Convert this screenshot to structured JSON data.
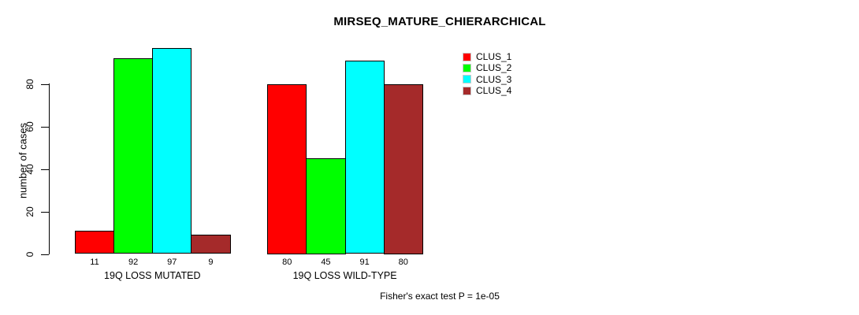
{
  "chart_data": {
    "type": "bar",
    "title": "MIRSEQ_MATURE_CHIERARCHICAL",
    "ylabel": "number of cases",
    "xlabel": "",
    "ylim": [
      0,
      97
    ],
    "yticks": [
      0,
      20,
      40,
      60,
      80
    ],
    "grid": false,
    "legend_position": "right-of-plot-top",
    "categories": [
      "19Q LOSS MUTATED",
      "19Q LOSS WILD-TYPE"
    ],
    "series": [
      {
        "name": "CLUS_1",
        "color": "#ff0000",
        "values": [
          11,
          80
        ]
      },
      {
        "name": "CLUS_2",
        "color": "#00ff00",
        "values": [
          92,
          45
        ]
      },
      {
        "name": "CLUS_3",
        "color": "#00ffff",
        "values": [
          97,
          91
        ]
      },
      {
        "name": "CLUS_4",
        "color": "#a52a2a",
        "values": [
          9,
          80
        ]
      }
    ],
    "value_labels": [
      [
        "11",
        "92",
        "97",
        "9"
      ],
      [
        "80",
        "45",
        "91",
        "80"
      ]
    ],
    "annotation": "Fisher's exact test P = 1e-05"
  }
}
